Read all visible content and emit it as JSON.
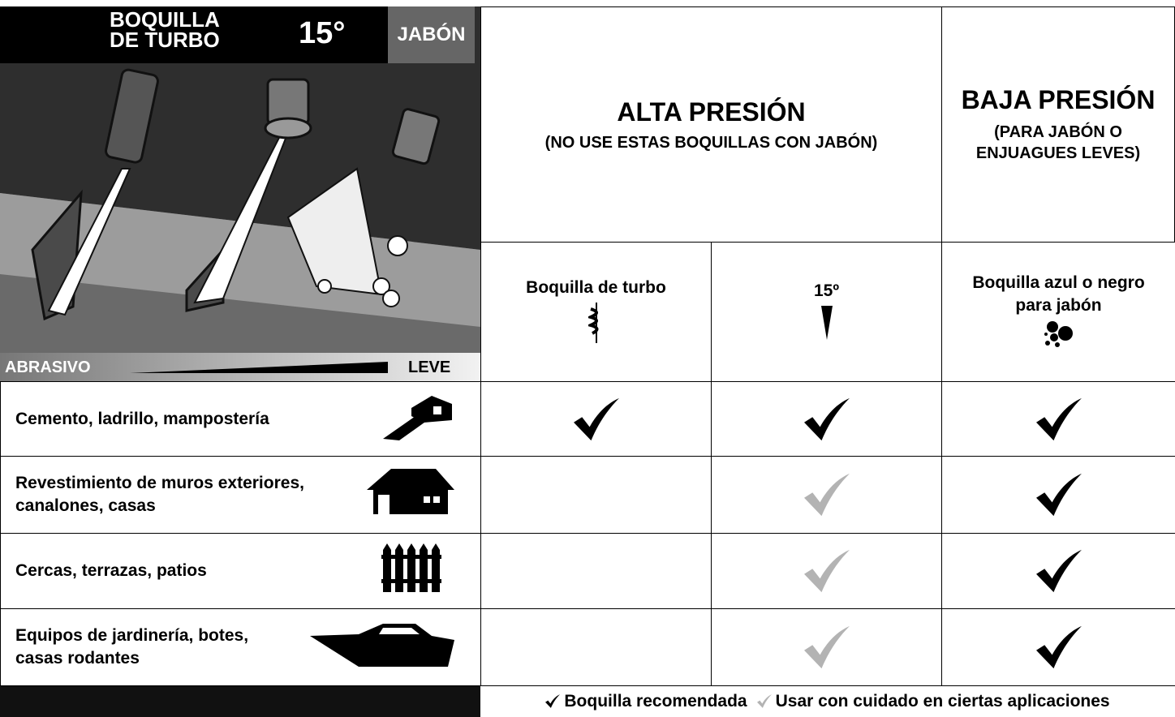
{
  "panel": {
    "title_lines": [
      "BOQUILLA",
      "DE TURBO"
    ],
    "angle": "15°",
    "soap": "JABÓN",
    "scale_left": "ABRASIVO",
    "scale_right": "LEVE"
  },
  "header": {
    "high": {
      "title": "ALTA PRESIÓN",
      "note": "(NO USE ESTAS BOQUILLAS CON JABÓN)"
    },
    "low": {
      "title": "BAJA PRESIÓN",
      "note_lines": [
        "(PARA JABÓN O",
        "ENJUAGUES LEVES)"
      ]
    }
  },
  "columns": [
    "Boquilla de turbo",
    "15º",
    "Boquilla azul o negro para jabón"
  ],
  "table": {
    "rows": [
      {
        "lines": [
          "Cemento, ladrillo, mampostería"
        ],
        "cells": [
          "#000000",
          "#000000",
          "#000000"
        ]
      },
      {
        "lines": [
          "Revestimiento de muros exteriores,",
          "canalones, casas"
        ],
        "cells": [
          null,
          "#b3b3b3",
          "#000000"
        ]
      },
      {
        "lines": [
          "Cercas, terrazas, patios"
        ],
        "cells": [
          null,
          "#b3b3b3",
          "#000000"
        ]
      },
      {
        "lines": [
          "Equipos de jardinería, botes,",
          "casas rodantes"
        ],
        "cells": [
          null,
          "#b3b3b3",
          "#000000"
        ]
      }
    ]
  },
  "legend": [
    {
      "color": "#000000",
      "text": "Boquilla recomendada"
    },
    {
      "color": "#b3b3b3",
      "text": "Usar con cuidado en ciertas aplicaciones"
    }
  ]
}
